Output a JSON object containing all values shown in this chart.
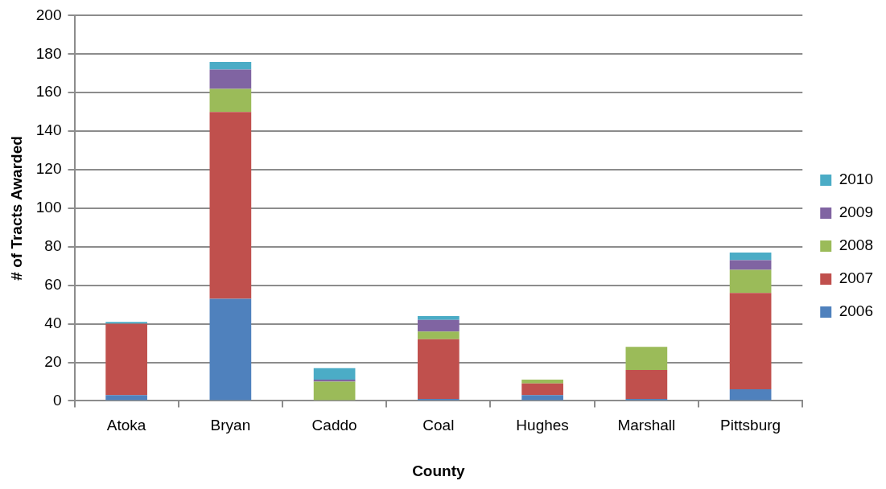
{
  "chart_data": {
    "type": "bar",
    "stacked": true,
    "xlabel": "County",
    "ylabel": "# of Tracts Awarded",
    "categories": [
      "Atoka",
      "Bryan",
      "Caddo",
      "Coal",
      "Hughes",
      "Marshall",
      "Pittsburg"
    ],
    "series": [
      {
        "name": "2006",
        "color": "#4f81bd",
        "values": [
          3,
          53,
          0,
          1,
          3,
          1,
          6
        ]
      },
      {
        "name": "2007",
        "color": "#c0504d",
        "values": [
          37,
          97,
          0,
          31,
          6,
          15,
          50
        ]
      },
      {
        "name": "2008",
        "color": "#9bbb59",
        "values": [
          0,
          12,
          10,
          4,
          2,
          12,
          12
        ]
      },
      {
        "name": "2009",
        "color": "#8064a2",
        "values": [
          0,
          10,
          1,
          6,
          0,
          0,
          5
        ]
      },
      {
        "name": "2010",
        "color": "#4bacc6",
        "values": [
          1,
          4,
          6,
          2,
          0,
          0,
          4
        ]
      }
    ],
    "ylim": [
      0,
      200
    ],
    "yticks": [
      0,
      20,
      40,
      60,
      80,
      100,
      120,
      140,
      160,
      180,
      200
    ],
    "grid": "y",
    "legend": "right"
  }
}
